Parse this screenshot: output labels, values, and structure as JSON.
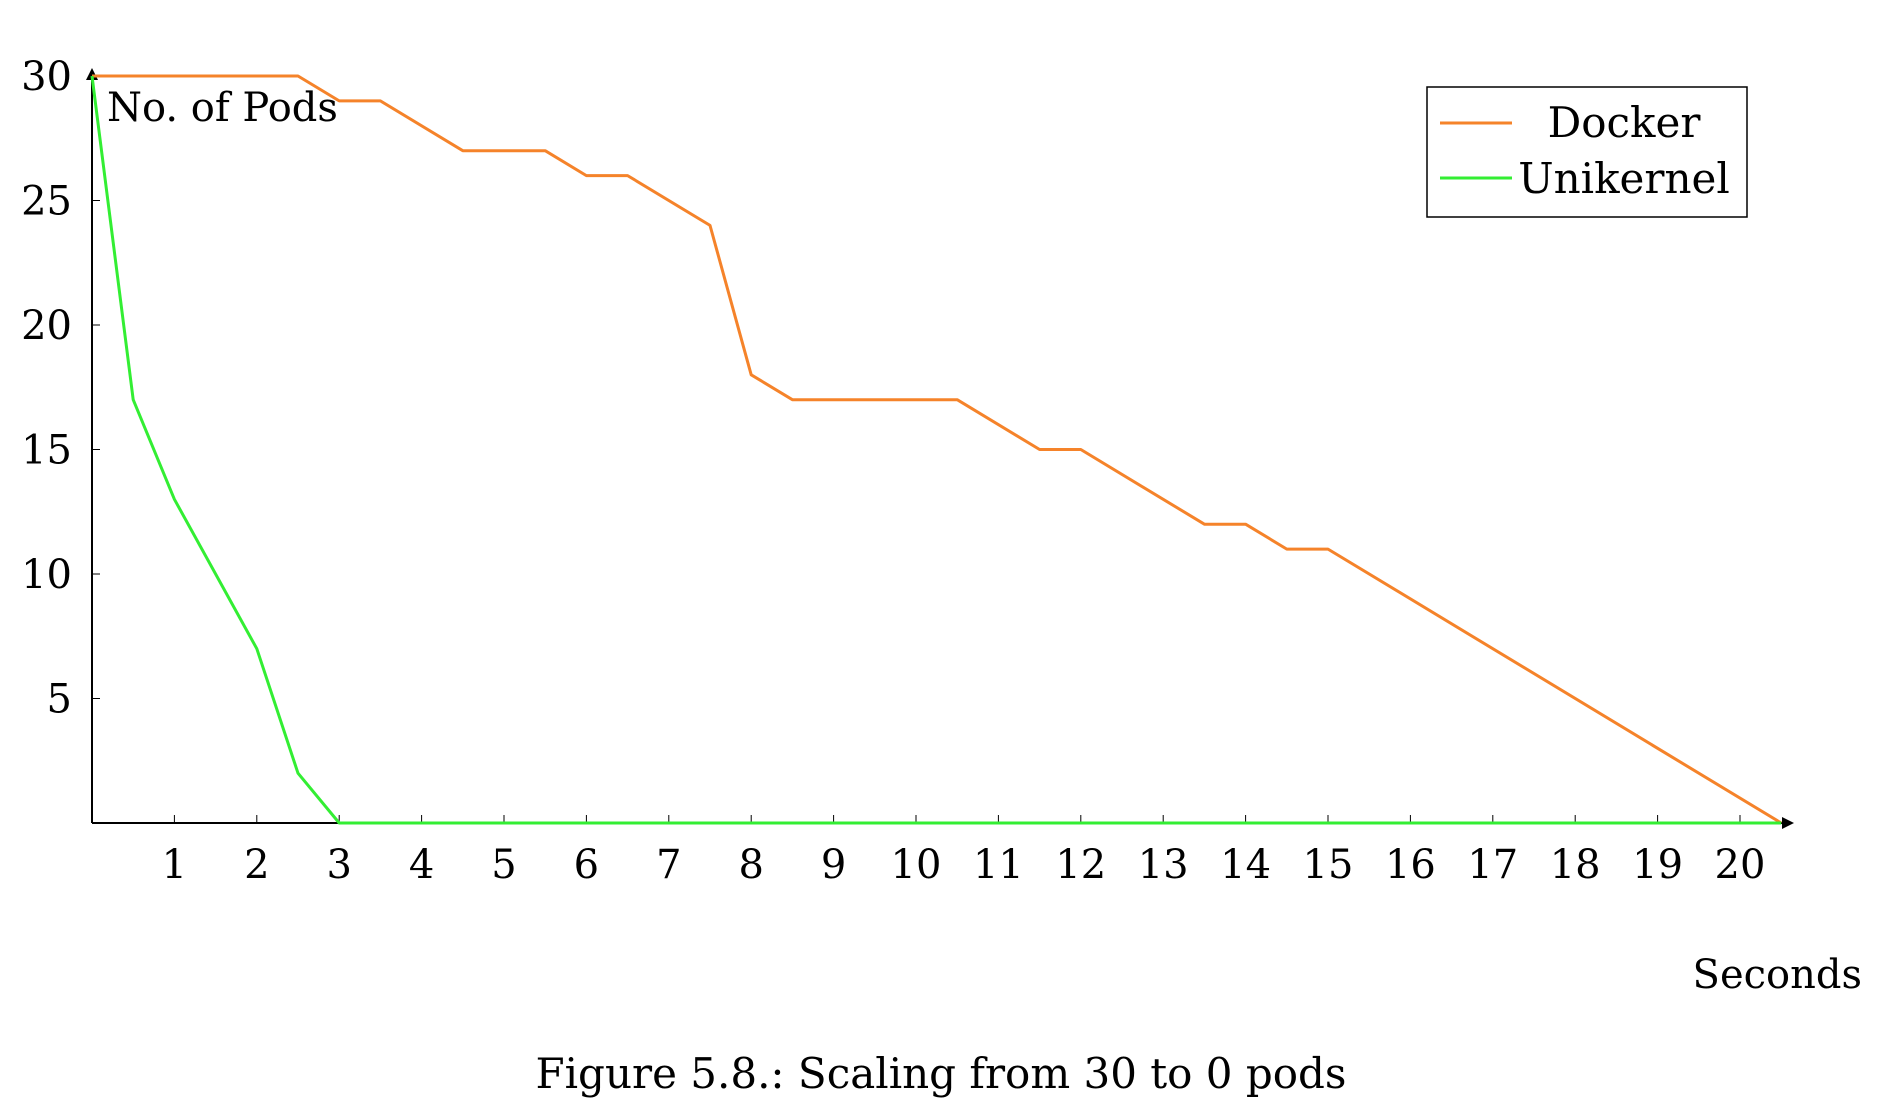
{
  "chart_data": {
    "type": "line",
    "title": "",
    "xlabel": "Seconds",
    "ylabel": "No. of Pods",
    "xlim": [
      0,
      20.5
    ],
    "ylim": [
      0,
      30
    ],
    "xticks": [
      1,
      2,
      3,
      4,
      5,
      6,
      7,
      8,
      9,
      10,
      11,
      12,
      13,
      14,
      15,
      16,
      17,
      18,
      19,
      20
    ],
    "yticks": [
      5,
      10,
      15,
      20,
      25,
      30
    ],
    "grid": false,
    "legend_position": "top-right",
    "series": [
      {
        "name": "Docker",
        "color": "#f5832a",
        "x": [
          0,
          2.5,
          3,
          3.5,
          4.5,
          5.5,
          6,
          6.5,
          7.5,
          8,
          8.5,
          10.5,
          11.5,
          12,
          13.5,
          14,
          14.5,
          15,
          20.5
        ],
        "y": [
          30,
          30,
          29,
          29,
          27,
          27,
          26,
          26,
          24,
          18,
          17,
          17,
          15,
          15,
          12,
          12,
          11,
          11,
          0
        ]
      },
      {
        "name": "Unikernel",
        "color": "#33ee33",
        "x": [
          0,
          0.5,
          1,
          2,
          2.5,
          3,
          20.5
        ],
        "y": [
          30,
          17,
          13,
          7,
          2,
          0,
          0
        ]
      }
    ]
  },
  "caption": "Figure 5.8.: Scaling from 30 to 0 pods"
}
